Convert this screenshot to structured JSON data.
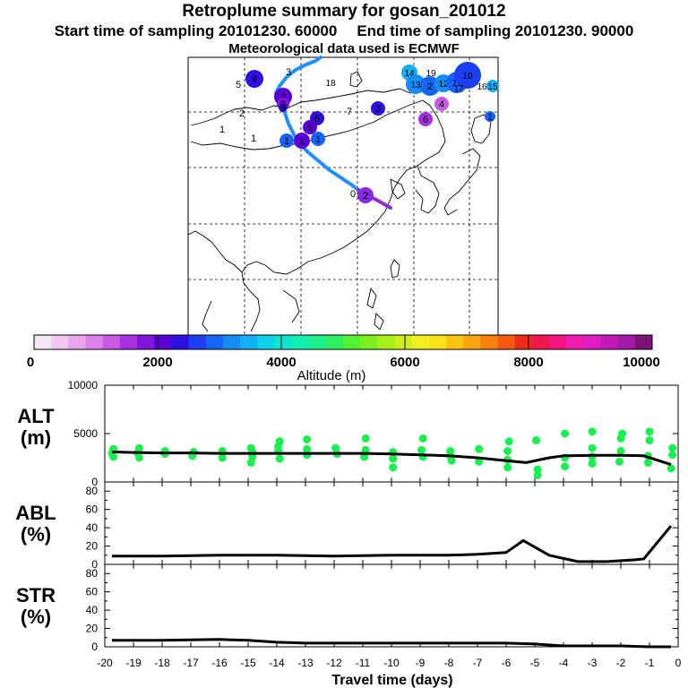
{
  "title": "Retroplume summary for gosan_201012",
  "start_sampling": "Start time of sampling 20101230. 60000",
  "end_sampling": "End time of sampling 20101230. 90000",
  "met_data": "Meteorological data used is ECMWF",
  "colorbar": {
    "label": "Altitude (m)",
    "ticks": [
      "0",
      "2000",
      "4000",
      "6000",
      "8000",
      "10000"
    ],
    "colors": [
      "#f5e6f5",
      "#f0c8f0",
      "#e8a6ee",
      "#dc80ea",
      "#c85ae4",
      "#a830e0",
      "#8214dc",
      "#5a00d6",
      "#2e10e0",
      "#1a3ef0",
      "#1464f6",
      "#168cf8",
      "#12b0f6",
      "#0cd2ea",
      "#0ae6d2",
      "#12f0b0",
      "#1cf08a",
      "#2cf060",
      "#52f032",
      "#7cf01e",
      "#a6f01a",
      "#cef01a",
      "#f0f020",
      "#fae216",
      "#fcc412",
      "#fca40e",
      "#fa800c",
      "#f45a10",
      "#ee2c18",
      "#f0184e",
      "#f41484",
      "#f01cae",
      "#e01cc2",
      "#c41aba",
      "#a41aa8",
      "#7c1478"
    ]
  },
  "map": {
    "trajectory_color": "#1e90ff",
    "recent_segment_color": "#8a2be2",
    "cluster_labels": [
      {
        "label": "3",
        "color": "#1e90ff"
      },
      {
        "label": "5",
        "color": "#a830e0"
      },
      {
        "label": "4",
        "color": "#2e10e0"
      },
      {
        "label": "18",
        "color": "#12d0f0"
      },
      {
        "label": "14",
        "color": "#12b0f6"
      },
      {
        "label": "19",
        "color": "#12c8f4"
      },
      {
        "label": "13",
        "color": "#168cf8"
      },
      {
        "label": "2",
        "color": "#1464f6"
      },
      {
        "label": "12",
        "color": "#168cf8"
      },
      {
        "label": "11",
        "color": "#1464f6"
      },
      {
        "label": "10",
        "color": "#1a3ef0"
      },
      {
        "label": "17",
        "color": "#168cf8"
      },
      {
        "label": "16",
        "color": "#0cd2ea"
      },
      {
        "label": "15",
        "color": "#12b0f6"
      },
      {
        "label": "7",
        "color": "#5a00d6"
      },
      {
        "label": "8",
        "color": "#8214dc"
      },
      {
        "label": "9",
        "color": "#2e10e0"
      },
      {
        "label": "2",
        "color": "#0ad2d2"
      },
      {
        "label": "1",
        "color": "#52f032"
      },
      {
        "label": "1",
        "color": "#1cf08a"
      },
      {
        "label": "6",
        "color": "#2e10e0"
      },
      {
        "label": "5",
        "color": "#5a00d6"
      },
      {
        "label": "7",
        "color": "#a830e0"
      },
      {
        "label": "3",
        "color": "#2e10e0"
      },
      {
        "label": "4",
        "color": "#c85ae4"
      },
      {
        "label": "6",
        "color": "#a830e0"
      },
      {
        "label": "1",
        "color": "#1464f6"
      },
      {
        "label": "1",
        "color": "#1464f6"
      },
      {
        "label": "1",
        "color": "#5a00d6"
      },
      {
        "label": "1",
        "color": "#1464f6"
      },
      {
        "label": "0",
        "color": "#1e90ff"
      },
      {
        "label": "2",
        "color": "#8a2be2"
      }
    ]
  },
  "chart_data": [
    {
      "type": "line",
      "name": "ALT",
      "ylabel": "ALT\n(m)",
      "ylabel_lines": [
        "ALT",
        "(m)"
      ],
      "ylim": [
        0,
        10000
      ],
      "yticks": [
        "0",
        "5000",
        "10000"
      ],
      "x": [
        -19.75,
        -19,
        -18,
        -17,
        -16,
        -15,
        -14,
        -13,
        -12,
        -11,
        -10,
        -9,
        -8,
        -7,
        -6,
        -5.3,
        -4.5,
        -4,
        -3,
        -2,
        -1.2,
        -0.25
      ],
      "values": [
        3100,
        3050,
        3000,
        3000,
        2950,
        2950,
        2950,
        2950,
        2950,
        2950,
        2900,
        2800,
        2700,
        2500,
        2200,
        2000,
        2500,
        2700,
        2750,
        2750,
        2700,
        1800
      ],
      "scatter_color": "#19f050",
      "scatter": [
        {
          "x": -19.75,
          "y": 3000
        },
        {
          "x": -19.7,
          "y": 2600
        },
        {
          "x": -19.7,
          "y": 3400
        },
        {
          "x": -18.85,
          "y": 3000
        },
        {
          "x": -18.8,
          "y": 2500
        },
        {
          "x": -18.8,
          "y": 3500
        },
        {
          "x": -17.9,
          "y": 2900
        },
        {
          "x": -17.9,
          "y": 3200
        },
        {
          "x": -16.95,
          "y": 2700
        },
        {
          "x": -16.9,
          "y": 3100
        },
        {
          "x": -15.9,
          "y": 2500
        },
        {
          "x": -15.9,
          "y": 3200
        },
        {
          "x": -14.85,
          "y": 2600
        },
        {
          "x": -14.9,
          "y": 2000
        },
        {
          "x": -14.85,
          "y": 3100
        },
        {
          "x": -14.9,
          "y": 3500
        },
        {
          "x": -13.9,
          "y": 2400
        },
        {
          "x": -13.95,
          "y": 3200
        },
        {
          "x": -13.95,
          "y": 3700
        },
        {
          "x": -13.9,
          "y": 4200
        },
        {
          "x": -12.95,
          "y": 2800
        },
        {
          "x": -12.95,
          "y": 3400
        },
        {
          "x": -12.95,
          "y": 4400
        },
        {
          "x": -11.9,
          "y": 2900
        },
        {
          "x": -11.95,
          "y": 3500
        },
        {
          "x": -10.95,
          "y": 2600
        },
        {
          "x": -10.9,
          "y": 3300
        },
        {
          "x": -10.9,
          "y": 4500
        },
        {
          "x": -9.95,
          "y": 2400
        },
        {
          "x": -9.95,
          "y": 3100
        },
        {
          "x": -9.95,
          "y": 1500
        },
        {
          "x": -8.9,
          "y": 2600
        },
        {
          "x": -8.95,
          "y": 3300
        },
        {
          "x": -8.9,
          "y": 4500
        },
        {
          "x": -7.95,
          "y": 2700
        },
        {
          "x": -7.9,
          "y": 2200
        },
        {
          "x": -7.95,
          "y": 3200
        },
        {
          "x": -6.95,
          "y": 2100
        },
        {
          "x": -6.95,
          "y": 3400
        },
        {
          "x": -5.95,
          "y": 1500
        },
        {
          "x": -5.95,
          "y": 2300
        },
        {
          "x": -5.95,
          "y": 3200
        },
        {
          "x": -5.9,
          "y": 4200
        },
        {
          "x": -4.9,
          "y": 700
        },
        {
          "x": -4.9,
          "y": 1300
        },
        {
          "x": -4.95,
          "y": 4300
        },
        {
          "x": -3.95,
          "y": 1600
        },
        {
          "x": -3.95,
          "y": 2500
        },
        {
          "x": -3.95,
          "y": 5000
        },
        {
          "x": -3.0,
          "y": 1900
        },
        {
          "x": -3.0,
          "y": 2600
        },
        {
          "x": -3.0,
          "y": 3500
        },
        {
          "x": -3.0,
          "y": 5200
        },
        {
          "x": -2.05,
          "y": 2100
        },
        {
          "x": -2.0,
          "y": 3200
        },
        {
          "x": -2.0,
          "y": 4500
        },
        {
          "x": -1.95,
          "y": 5000
        },
        {
          "x": -1.05,
          "y": 2000
        },
        {
          "x": -1.05,
          "y": 2700
        },
        {
          "x": -1.0,
          "y": 4300
        },
        {
          "x": -1.0,
          "y": 5200
        },
        {
          "x": -0.25,
          "y": 1400
        },
        {
          "x": -0.2,
          "y": 2800
        },
        {
          "x": -0.2,
          "y": 3500
        }
      ]
    },
    {
      "type": "line",
      "name": "ABL",
      "ylabel": "ABL\n(%)",
      "ylabel_lines": [
        "ABL",
        "(%)"
      ],
      "ylim": [
        0,
        90
      ],
      "yticks": [
        "0",
        "20",
        "40",
        "60",
        "80"
      ],
      "x": [
        -19.75,
        -18,
        -16,
        -14,
        -12,
        -10,
        -8,
        -7,
        -6,
        -5.4,
        -4.5,
        -3.5,
        -2.5,
        -1.5,
        -1.2,
        -0.25
      ],
      "values": [
        9,
        9,
        10,
        10,
        9,
        10,
        10,
        11,
        13,
        26,
        10,
        3,
        3,
        5,
        6,
        42
      ]
    },
    {
      "type": "line",
      "name": "STR",
      "ylabel": "STR\n(%)",
      "ylabel_lines": [
        "STR",
        "(%)"
      ],
      "ylim": [
        0,
        90
      ],
      "yticks": [
        "0",
        "20",
        "40",
        "60",
        "80"
      ],
      "x": [
        -19.75,
        -18,
        -16,
        -15,
        -14,
        -13,
        -12,
        -10,
        -8,
        -6,
        -5,
        -4,
        -3,
        -2,
        -1,
        -0.25
      ],
      "values": [
        7,
        7,
        8,
        7,
        5,
        4,
        4,
        4,
        4,
        4,
        3,
        1,
        1,
        1,
        0,
        0
      ]
    }
  ],
  "xaxis": {
    "label": "Travel time (days)",
    "ticks": [
      "-20",
      "-19",
      "-18",
      "-17",
      "-16",
      "-15",
      "-14",
      "-13",
      "-12",
      "-11",
      "-10",
      "-9",
      "-8",
      "-7",
      "-6",
      "-5",
      "-4",
      "-3",
      "-2",
      "-1",
      "0"
    ],
    "range": [
      -20,
      0
    ]
  }
}
